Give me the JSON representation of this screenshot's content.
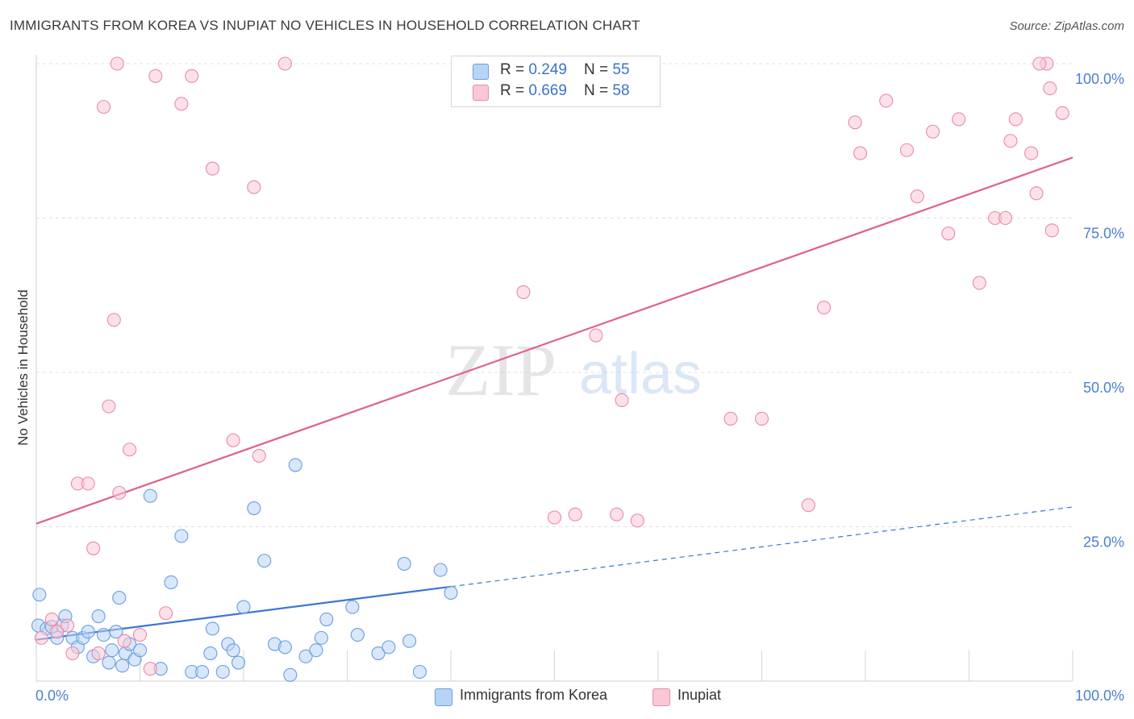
{
  "header": {
    "title": "IMMIGRANTS FROM KOREA VS INUPIAT NO VEHICLES IN HOUSEHOLD CORRELATION CHART",
    "source": "Source: ZipAtlas.com"
  },
  "watermark": {
    "zip": "ZIP",
    "atlas": "atlas"
  },
  "legend": {
    "rows": [
      {
        "r_label": "R = ",
        "r_value": "0.249",
        "n_label": "N = ",
        "n_value": "55",
        "color": "#a8c8f0"
      },
      {
        "r_label": "R = ",
        "r_value": "0.669",
        "n_label": "N = ",
        "n_value": "58",
        "color": "#f5b8c8"
      }
    ]
  },
  "chart_data": {
    "type": "scatter",
    "title": "IMMIGRANTS FROM KOREA VS INUPIAT NO VEHICLES IN HOUSEHOLD CORRELATION CHART",
    "xlabel": "",
    "ylabel": "No Vehicles in Household",
    "xlim": [
      0,
      100
    ],
    "ylim": [
      0,
      100
    ],
    "x_tick_labels": [
      "0.0%",
      "100.0%"
    ],
    "y_tick_labels": [
      "25.0%",
      "50.0%",
      "75.0%",
      "100.0%"
    ],
    "y_ticks": [
      25,
      50,
      75,
      100
    ],
    "grid": true,
    "legend_position": "top-center",
    "series": [
      {
        "name": "Immigrants from Korea",
        "color": "#6a9de0",
        "fill": "#b8d4f5",
        "line_color": "#3b76d6",
        "trend": {
          "x0": 0,
          "y0": 6.7,
          "x1": 40,
          "y1": 15.3,
          "dashed_to": 100,
          "y_dashed_end": 28.2
        },
        "points": [
          [
            0.3,
            14.0
          ],
          [
            0.2,
            9.0
          ],
          [
            1.0,
            8.5
          ],
          [
            1.5,
            8.8
          ],
          [
            2.0,
            7.0
          ],
          [
            2.5,
            9.0
          ],
          [
            2.8,
            10.5
          ],
          [
            3.5,
            7.0
          ],
          [
            4.0,
            5.5
          ],
          [
            4.5,
            7.0
          ],
          [
            5.0,
            8.0
          ],
          [
            5.5,
            4.0
          ],
          [
            6.0,
            10.5
          ],
          [
            6.5,
            7.5
          ],
          [
            7.0,
            3.0
          ],
          [
            7.3,
            5.0
          ],
          [
            7.7,
            8.0
          ],
          [
            8.0,
            13.5
          ],
          [
            8.3,
            2.5
          ],
          [
            8.6,
            4.5
          ],
          [
            9.0,
            6.0
          ],
          [
            9.5,
            3.5
          ],
          [
            10.0,
            5.0
          ],
          [
            11.0,
            30.0
          ],
          [
            12.0,
            2.0
          ],
          [
            13.0,
            16.0
          ],
          [
            14.0,
            23.5
          ],
          [
            15.0,
            1.5
          ],
          [
            16.0,
            1.5
          ],
          [
            17.0,
            8.5
          ],
          [
            16.8,
            4.5
          ],
          [
            18.0,
            1.5
          ],
          [
            18.5,
            6.0
          ],
          [
            19.0,
            5.0
          ],
          [
            19.5,
            3.0
          ],
          [
            20.0,
            12.0
          ],
          [
            21.0,
            28.0
          ],
          [
            22.0,
            19.5
          ],
          [
            23.0,
            6.0
          ],
          [
            24.0,
            5.5
          ],
          [
            24.5,
            1.0
          ],
          [
            25.0,
            35.0
          ],
          [
            26.0,
            4.0
          ],
          [
            27.0,
            5.0
          ],
          [
            27.5,
            7.0
          ],
          [
            28.0,
            10.0
          ],
          [
            30.5,
            12.0
          ],
          [
            33.0,
            4.5
          ],
          [
            35.5,
            19.0
          ],
          [
            37.0,
            1.5
          ],
          [
            39.0,
            18.0
          ],
          [
            40.0,
            14.3
          ],
          [
            34.0,
            5.5
          ],
          [
            31.0,
            7.5
          ],
          [
            36.0,
            6.5
          ]
        ]
      },
      {
        "name": "Inupiat",
        "color": "#e98aa6",
        "fill": "#f9c8d6",
        "line_color": "#e0618a",
        "trend": {
          "x0": 0,
          "y0": 25.5,
          "x1": 100,
          "y1": 84.8
        },
        "points": [
          [
            0.5,
            7.0
          ],
          [
            1.5,
            10.0
          ],
          [
            2.0,
            8.0
          ],
          [
            3.0,
            9.0
          ],
          [
            3.5,
            4.5
          ],
          [
            4.0,
            32.0
          ],
          [
            5.0,
            32.0
          ],
          [
            5.5,
            21.5
          ],
          [
            6.0,
            4.5
          ],
          [
            6.5,
            93.0
          ],
          [
            7.0,
            44.5
          ],
          [
            7.5,
            58.5
          ],
          [
            8.0,
            30.5
          ],
          [
            8.5,
            6.5
          ],
          [
            9.0,
            37.5
          ],
          [
            10.0,
            7.5
          ],
          [
            11.0,
            2.0
          ],
          [
            11.5,
            98.0
          ],
          [
            12.5,
            11.0
          ],
          [
            14.0,
            93.5
          ],
          [
            15.0,
            98.0
          ],
          [
            17.0,
            83.0
          ],
          [
            19.0,
            39.0
          ],
          [
            21.0,
            80.0
          ],
          [
            21.5,
            36.5
          ],
          [
            47.0,
            63.0
          ],
          [
            50.0,
            26.5
          ],
          [
            52.0,
            27.0
          ],
          [
            56.0,
            27.0
          ],
          [
            56.5,
            45.5
          ],
          [
            58.0,
            26.0
          ],
          [
            67.0,
            42.5
          ],
          [
            70.0,
            42.5
          ],
          [
            74.5,
            28.5
          ],
          [
            76.0,
            60.5
          ],
          [
            79.0,
            90.5
          ],
          [
            79.5,
            85.5
          ],
          [
            82.0,
            94.0
          ],
          [
            84.0,
            86.0
          ],
          [
            85.0,
            78.5
          ],
          [
            86.5,
            89.0
          ],
          [
            88.0,
            72.5
          ],
          [
            89.0,
            91.0
          ],
          [
            91.0,
            64.5
          ],
          [
            92.5,
            75.0
          ],
          [
            93.5,
            75.0
          ],
          [
            94.0,
            87.5
          ],
          [
            94.5,
            91.0
          ],
          [
            96.0,
            85.5
          ],
          [
            96.5,
            79.0
          ],
          [
            97.5,
            100.0
          ],
          [
            97.8,
            96.0
          ],
          [
            98.0,
            73.0
          ],
          [
            99.0,
            92.0
          ],
          [
            96.8,
            100.0
          ],
          [
            24.0,
            100.0
          ],
          [
            7.8,
            100.0
          ],
          [
            54.0,
            56.0
          ]
        ]
      }
    ]
  },
  "bottom_legend": [
    {
      "label": "Immigrants from Korea",
      "color": "#b8d4f5",
      "border": "#6a9de0"
    },
    {
      "label": "Inupiat",
      "color": "#f9c8d6",
      "border": "#e98aa6"
    }
  ]
}
